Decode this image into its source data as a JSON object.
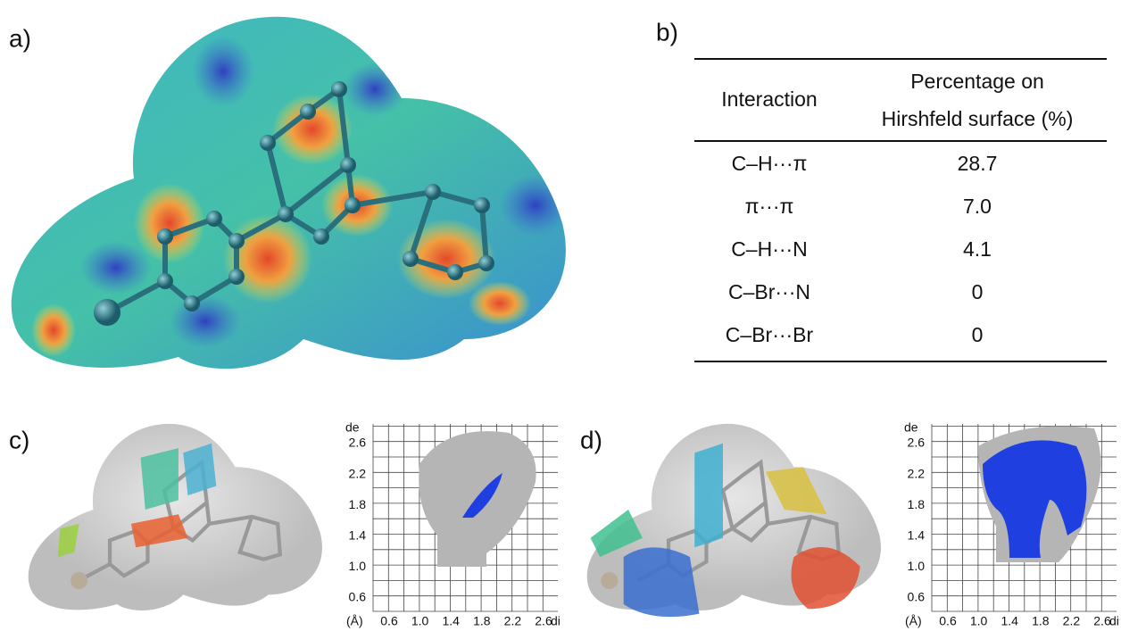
{
  "panels": {
    "a": "a)",
    "b": "b)",
    "c": "c)",
    "d": "d)"
  },
  "table": {
    "header": {
      "interaction": "Interaction",
      "percentage": [
        "Percentage on",
        "Hirshfeld surface (%)"
      ]
    },
    "rows": [
      [
        "C–H···π",
        "28.7"
      ],
      [
        "π···π",
        "7.0"
      ],
      [
        "C–H···N",
        "4.1"
      ],
      [
        "C–Br···N",
        "0"
      ],
      [
        "C–Br···Br",
        "0"
      ]
    ]
  },
  "plots": [
    {
      "y_label": "de",
      "x_label": "di",
      "unit": "(Å)",
      "xticks": [
        "0.6",
        "1.0",
        "1.4",
        "1.8",
        "2.2",
        "2.6"
      ],
      "yticks": [
        "2.6",
        "2.2",
        "1.8",
        "1.4",
        "1.0",
        "0.6"
      ]
    },
    {
      "y_label": "de",
      "x_label": "di",
      "unit": "(Å)",
      "xticks": [
        "0.6",
        "1.0",
        "1.4",
        "1.8",
        "2.2",
        "2.6"
      ],
      "yticks": [
        "2.6",
        "2.2",
        "1.8",
        "1.4",
        "1.0",
        "0.6"
      ]
    }
  ]
}
